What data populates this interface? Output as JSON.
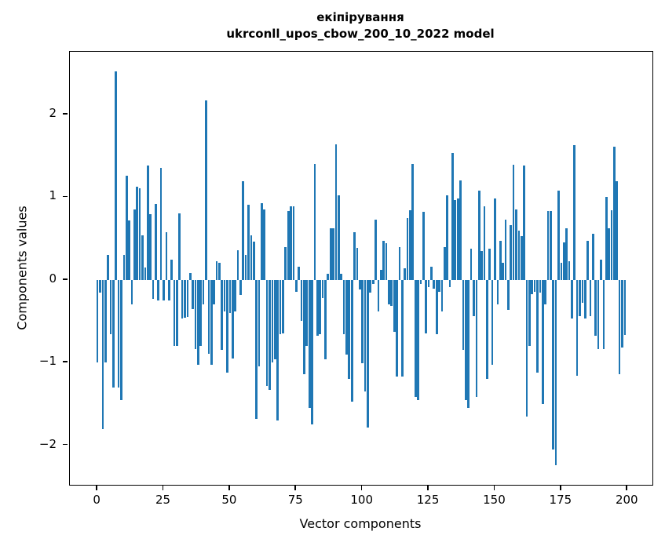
{
  "title": {
    "line1": "екіпірування",
    "line2": "ukrconll_upos_cbow_200_10_2022 model"
  },
  "axes": {
    "xlabel": "Vector components",
    "ylabel": "Components values"
  },
  "chart_data": {
    "type": "bar",
    "title": "екіпірування\nukrconll_upos_cbow_200_10_2022 model",
    "xlabel": "Vector components",
    "ylabel": "Components values",
    "bar_color": "#1f77b4",
    "grid": false,
    "legend": "none",
    "xlim": [
      -10.4,
      209.4
    ],
    "ylim": [
      -2.478,
      2.758
    ],
    "x_ticks": [
      0,
      25,
      50,
      75,
      100,
      125,
      150,
      175,
      200
    ],
    "x_tick_labels": [
      "0",
      "25",
      "50",
      "75",
      "100",
      "125",
      "150",
      "175",
      "200"
    ],
    "y_ticks": [
      -2,
      -1,
      0,
      1,
      2
    ],
    "y_tick_labels": [
      "−2",
      "−1",
      "0",
      "1",
      "2"
    ],
    "x": "index 0..199",
    "values": [
      -1.0,
      -0.15,
      -1.8,
      -1.0,
      0.3,
      -0.66,
      -1.3,
      2.52,
      -1.3,
      -1.45,
      0.3,
      1.26,
      0.72,
      -0.3,
      0.85,
      1.13,
      1.11,
      0.54,
      0.15,
      1.38,
      0.79,
      -0.23,
      0.92,
      -0.25,
      1.35,
      -0.25,
      0.58,
      -0.25,
      0.24,
      -0.8,
      -0.8,
      0.8,
      -0.47,
      -0.46,
      -0.45,
      0.08,
      -0.35,
      -0.84,
      -1.03,
      -0.8,
      -0.3,
      2.17,
      -0.89,
      -1.03,
      -0.3,
      0.23,
      0.21,
      -0.85,
      -0.38,
      -1.12,
      -0.4,
      -0.95,
      -0.38,
      0.36,
      -0.18,
      1.19,
      0.3,
      0.91,
      0.54,
      0.46,
      -1.68,
      -1.05,
      0.93,
      0.85,
      -1.28,
      -1.33,
      -1.0,
      -0.96,
      -1.7,
      -0.66,
      -0.65,
      0.4,
      0.83,
      0.89,
      0.89,
      -0.14,
      0.16,
      -0.5,
      -1.14,
      -0.8,
      -1.55,
      -1.75,
      1.4,
      -0.68,
      -0.66,
      -0.22,
      -0.96,
      0.07,
      0.62,
      0.62,
      1.64,
      1.02,
      0.07,
      -0.66,
      -0.9,
      -1.2,
      -1.47,
      0.58,
      0.39,
      -0.12,
      -1.01,
      -1.35,
      -1.79,
      -0.15,
      -0.05,
      0.73,
      -0.38,
      0.12,
      0.47,
      0.44,
      -0.3,
      -0.32,
      -0.63,
      -1.17,
      0.4,
      -1.17,
      0.14,
      0.75,
      0.84,
      1.4,
      -1.42,
      -1.45,
      -0.05,
      0.82,
      -0.65,
      -0.09,
      0.16,
      -0.11,
      -0.66,
      -0.14,
      -0.38,
      0.4,
      1.02,
      -0.09,
      1.53,
      0.97,
      0.98,
      1.2,
      -0.85,
      -1.45,
      -1.55,
      0.38,
      -0.44,
      -1.42,
      1.08,
      0.35,
      0.89,
      -1.2,
      0.38,
      -1.03,
      0.98,
      -0.3,
      0.47,
      0.21,
      0.73,
      -0.36,
      0.66,
      1.39,
      0.85,
      0.6,
      0.53,
      1.38,
      -1.65,
      -0.8,
      -0.17,
      -0.14,
      -1.12,
      -0.15,
      -1.5,
      -0.3,
      0.83,
      0.83,
      -2.05,
      -2.24,
      1.08,
      0.21,
      0.45,
      0.62,
      0.23,
      -0.47,
      1.63,
      -1.16,
      -0.44,
      -0.28,
      -0.47,
      0.47,
      -0.44,
      0.56,
      -0.68,
      -0.84,
      0.24,
      -0.84,
      1.0,
      0.62,
      0.84,
      1.61,
      1.19,
      -1.14,
      -0.82,
      -0.67
    ]
  }
}
